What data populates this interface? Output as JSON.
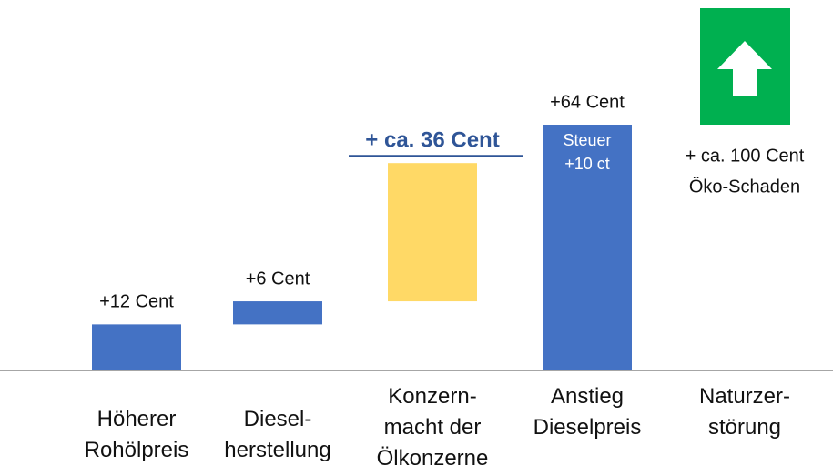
{
  "chart_data": {
    "type": "waterfall",
    "categories": [
      "Höherer\nRohölpreis",
      "Diesel-\nherstellung",
      "Konzern-\nmacht der\nÖlkonzerne",
      "Anstieg\nDieselpreis",
      "Naturzer-\nstörung"
    ],
    "values": [
      12,
      6,
      36,
      64,
      null
    ],
    "value_labels": [
      "+12 Cent",
      "+6 Cent",
      "+ ca. 36 Cent",
      "+64 Cent",
      null
    ],
    "measures": [
      "relative",
      "relative",
      "relative",
      "total",
      null
    ],
    "colors": [
      "#4472c4",
      "#4472c4",
      "#ffd966",
      "#4472c4",
      null
    ],
    "annotations": [
      "Steuer",
      "+10 ct",
      "+ ca. 100 Cent",
      "Öko-Schaden"
    ]
  }
}
